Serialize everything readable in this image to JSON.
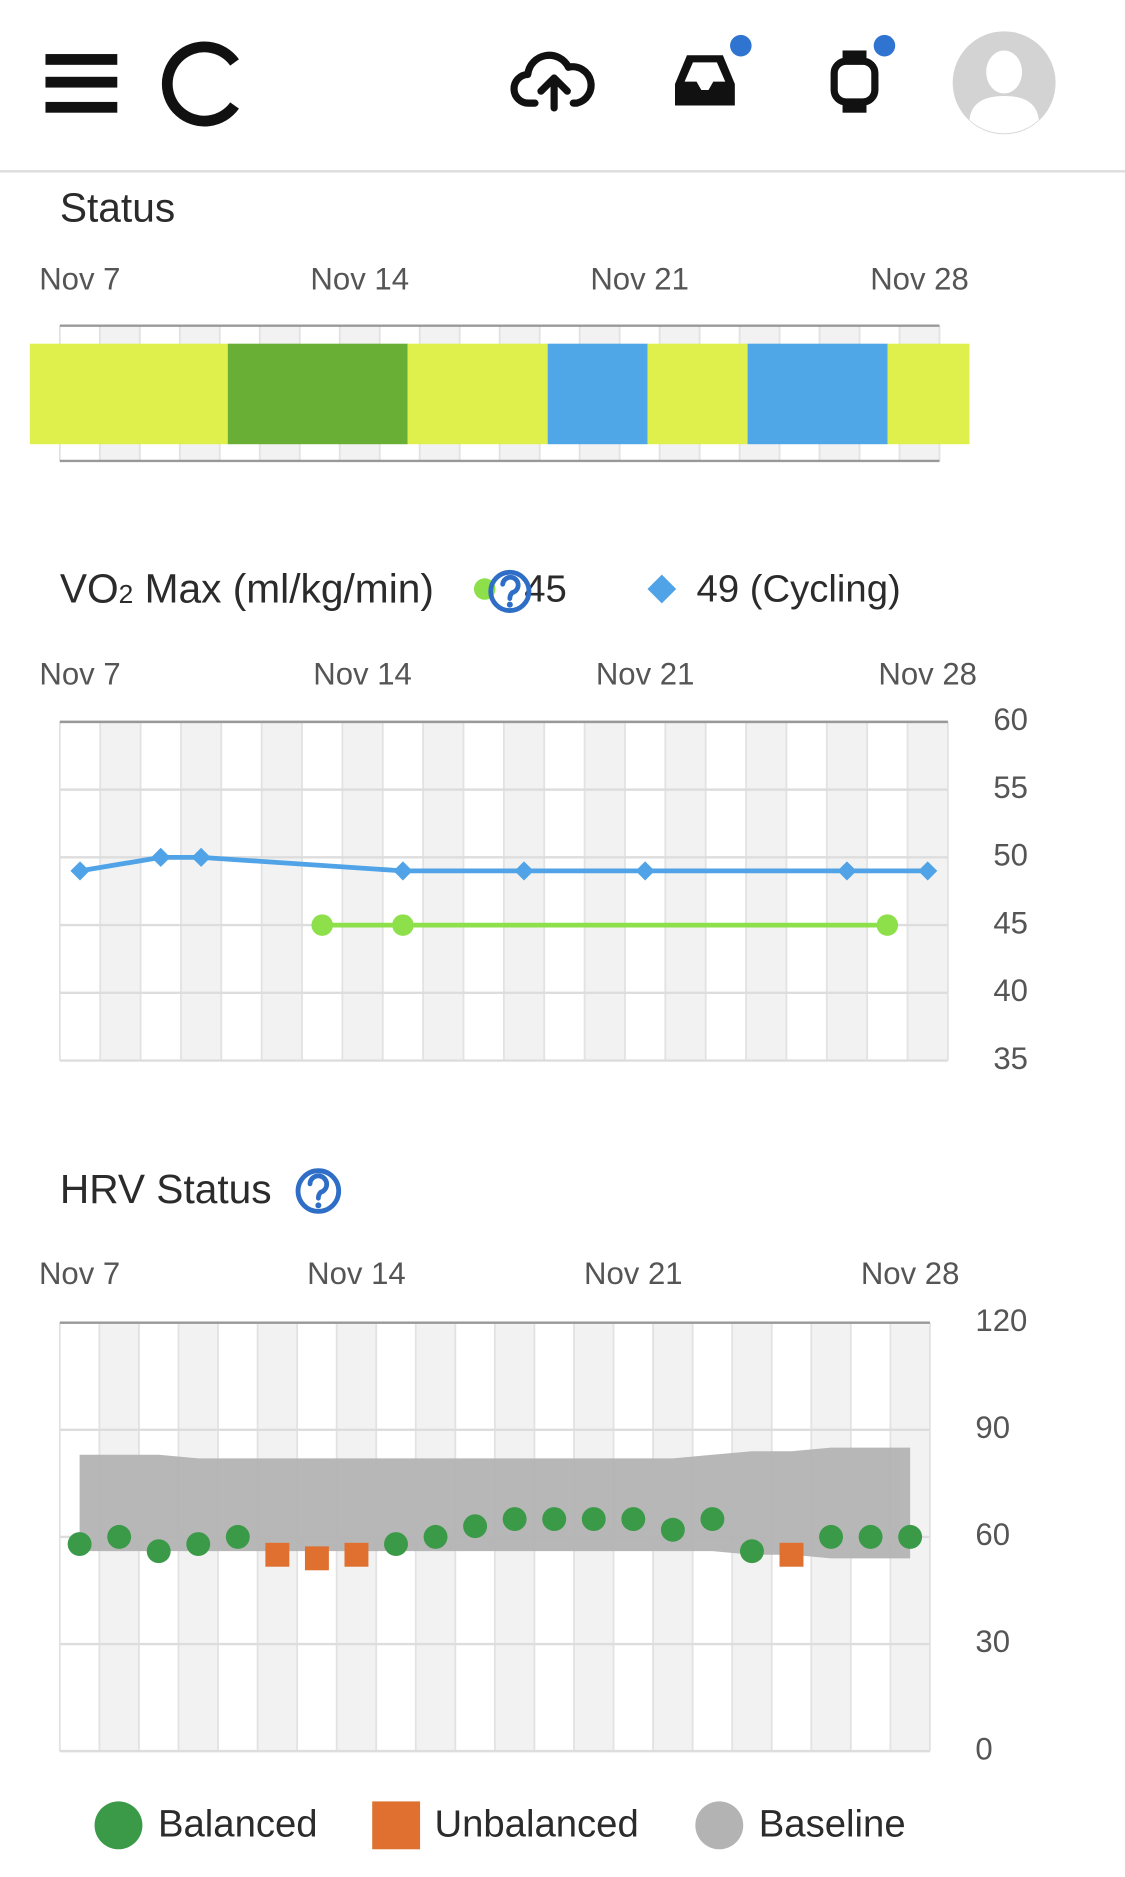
{
  "status_chart": {
    "type": "timeline",
    "title": "Status",
    "xlim": [
      6.5,
      28.5
    ],
    "xticks": [
      {
        "value": 7,
        "label": "Nov 7"
      },
      {
        "value": 14,
        "label": "Nov 14"
      },
      {
        "value": 21,
        "label": "Nov 21"
      },
      {
        "value": 28,
        "label": "Nov 28"
      }
    ],
    "segments": [
      {
        "start": 5.75,
        "end": 10.7,
        "color": "#dff04c"
      },
      {
        "start": 10.7,
        "end": 15.2,
        "color": "#6aaf35"
      },
      {
        "start": 15.2,
        "end": 18.7,
        "color": "#dff04c"
      },
      {
        "start": 18.7,
        "end": 21.2,
        "color": "#50a7e8"
      },
      {
        "start": 21.2,
        "end": 23.7,
        "color": "#dff04c"
      },
      {
        "start": 23.7,
        "end": 27.2,
        "color": "#50a7e8"
      },
      {
        "start": 27.2,
        "end": 29.25,
        "color": "#dff04c"
      }
    ]
  },
  "vo2_chart": {
    "type": "line",
    "title": "VO",
    "title_sub": "2",
    "title_rest": " Max (ml/kg/min)",
    "xlim": [
      6.5,
      28.5
    ],
    "xticks": [
      {
        "value": 7,
        "label": "Nov 7"
      },
      {
        "value": 14,
        "label": "Nov 14"
      },
      {
        "value": 21,
        "label": "Nov 21"
      },
      {
        "value": 28,
        "label": "Nov 28"
      }
    ],
    "ylim": [
      35,
      60
    ],
    "yticks": [
      35,
      40,
      45,
      50,
      55,
      60
    ],
    "grid": true,
    "series": [
      {
        "name": "45",
        "color": "#8ee04a",
        "marker": "circle",
        "x": [
          13,
          15,
          27
        ],
        "values": [
          45,
          45,
          45
        ]
      },
      {
        "name": "49 (Cycling)",
        "color": "#4fa3e6",
        "marker": "diamond",
        "x": [
          7,
          9,
          10,
          15,
          18,
          21,
          26,
          28
        ],
        "values": [
          49,
          50,
          50,
          49,
          49,
          49,
          49,
          49
        ]
      }
    ]
  },
  "hrv_chart": {
    "type": "scatter",
    "title": "HRV Status",
    "xlim": [
      6.5,
      28.5
    ],
    "xticks": [
      {
        "value": 7,
        "label": "Nov 7"
      },
      {
        "value": 14,
        "label": "Nov 14"
      },
      {
        "value": 21,
        "label": "Nov 21"
      },
      {
        "value": 28,
        "label": "Nov 28"
      }
    ],
    "ylim": [
      0,
      120
    ],
    "yticks": [
      0,
      30,
      60,
      90,
      120
    ],
    "grid": true,
    "x": [
      7,
      8,
      9,
      10,
      11,
      12,
      13,
      14,
      15,
      16,
      17,
      18,
      19,
      20,
      21,
      22,
      23,
      24,
      25,
      26,
      27,
      28
    ],
    "series": [
      {
        "name": "Balanced",
        "color": "#3a9a48",
        "marker": "circle",
        "values": [
          58,
          60,
          56,
          58,
          60,
          null,
          null,
          null,
          58,
          60,
          63,
          65,
          65,
          65,
          65,
          62,
          65,
          56,
          null,
          60,
          60,
          60
        ]
      },
      {
        "name": "Unbalanced",
        "color": "#e07030",
        "marker": "square",
        "values": [
          null,
          null,
          null,
          null,
          null,
          55,
          54,
          55,
          null,
          null,
          null,
          null,
          null,
          null,
          null,
          null,
          null,
          null,
          55,
          null,
          null,
          null
        ]
      }
    ],
    "band": {
      "name": "Baseline",
      "color": "#b3b3b3",
      "low": [
        56,
        56,
        56,
        56,
        56,
        56,
        56,
        56,
        56,
        56,
        56,
        56,
        56,
        56,
        56,
        56,
        56,
        55,
        55,
        54,
        54,
        54
      ],
      "high": [
        83,
        83,
        83,
        82,
        82,
        82,
        82,
        82,
        82,
        82,
        82,
        82,
        82,
        82,
        82,
        82,
        83,
        84,
        84,
        85,
        85,
        85
      ]
    }
  }
}
